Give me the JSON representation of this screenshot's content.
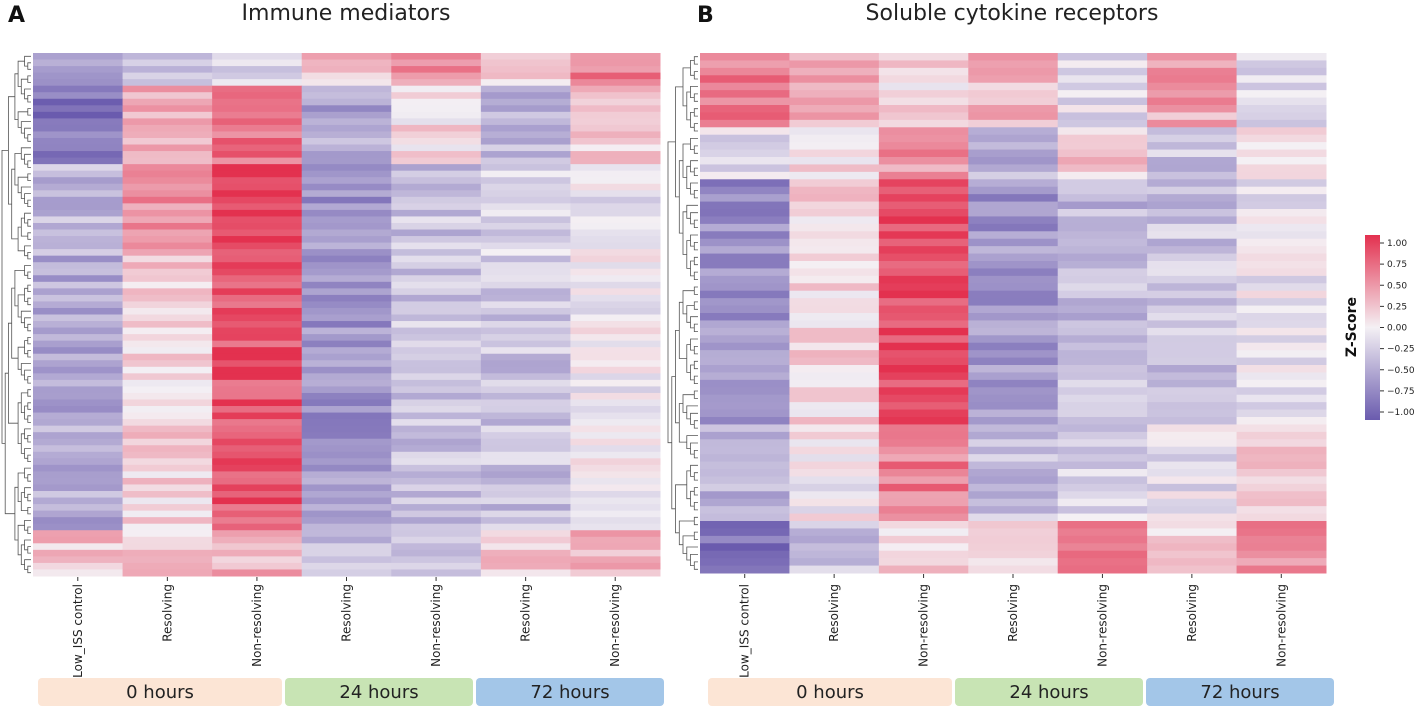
{
  "chart_data": [
    {
      "type": "heatmap",
      "panel_letter": "A",
      "title": "Immune mediators",
      "columns": [
        "Low_ISS control",
        "Resolving",
        "Non-resolving",
        "Resolving",
        "Non-resolving",
        "Resolving",
        "Non-resolving"
      ],
      "timepoint_groups": [
        {
          "label": "0 hours",
          "columns": [
            0,
            1,
            2
          ],
          "color": "#fce5d5"
        },
        {
          "label": "24 hours",
          "columns": [
            3,
            4
          ],
          "color": "#c8e4b4"
        },
        {
          "label": "72 hours",
          "columns": [
            5,
            6
          ],
          "color": "#a3c6e8"
        }
      ],
      "row_dendrogram": true,
      "rows": 80,
      "blocks": [
        {
          "rows": 5,
          "values": [
            -0.6,
            -0.3,
            -0.2,
            0.2,
            0.5,
            0.1,
            0.6
          ]
        },
        {
          "rows": 12,
          "values": [
            -0.8,
            0.3,
            0.7,
            -0.5,
            0.1,
            -0.4,
            0.2
          ]
        },
        {
          "rows": 14,
          "values": [
            -0.4,
            0.5,
            0.95,
            -0.6,
            -0.3,
            -0.2,
            -0.1
          ]
        },
        {
          "rows": 42,
          "values": [
            -0.45,
            0.15,
            0.82,
            -0.6,
            -0.3,
            -0.3,
            -0.05
          ]
        },
        {
          "rows": 7,
          "values": [
            0.25,
            0.2,
            0.3,
            -0.35,
            -0.25,
            0.2,
            0.35
          ]
        }
      ]
    },
    {
      "type": "heatmap",
      "panel_letter": "B",
      "title": "Soluble cytokine receptors",
      "columns": [
        "Low_ISS control",
        "Resolving",
        "Non-resolving",
        "Resolving",
        "Non-resolving",
        "Resolving",
        "Non-resolving"
      ],
      "timepoint_groups": [
        {
          "label": "0 hours",
          "columns": [
            0,
            1,
            2
          ],
          "color": "#fce5d5"
        },
        {
          "label": "24 hours",
          "columns": [
            3,
            4
          ],
          "color": "#c8e4b4"
        },
        {
          "label": "72 hours",
          "columns": [
            5,
            6
          ],
          "color": "#a3c6e8"
        }
      ],
      "row_dendrogram": true,
      "rows": 70,
      "blocks": [
        {
          "rows": 10,
          "values": [
            0.6,
            0.4,
            0.1,
            0.3,
            -0.1,
            0.4,
            -0.2
          ]
        },
        {
          "rows": 7,
          "values": [
            -0.1,
            0.1,
            0.5,
            -0.4,
            0.2,
            -0.3,
            0.1
          ]
        },
        {
          "rows": 33,
          "values": [
            -0.65,
            0.15,
            0.9,
            -0.6,
            -0.35,
            -0.3,
            -0.05
          ]
        },
        {
          "rows": 13,
          "values": [
            -0.4,
            0.0,
            0.6,
            -0.35,
            -0.2,
            -0.1,
            0.15
          ]
        },
        {
          "rows": 7,
          "values": [
            -0.85,
            -0.3,
            0.15,
            0.2,
            0.5,
            0.1,
            0.55
          ]
        }
      ]
    }
  ],
  "colorbar": {
    "label": "Z-Score",
    "ticks": [
      "1.00",
      "0.75",
      "0.50",
      "0.25",
      "0.00",
      "−0.25",
      "−0.50",
      "−0.75",
      "−1.00"
    ],
    "tick_values": [
      1.0,
      0.75,
      0.5,
      0.25,
      0.0,
      -0.25,
      -0.5,
      -0.75,
      -1.0
    ],
    "range": [
      -1.0,
      1.0
    ],
    "low_color": "#6a5bae",
    "mid_color": "#f4f0f4",
    "high_color": "#e3314f"
  }
}
